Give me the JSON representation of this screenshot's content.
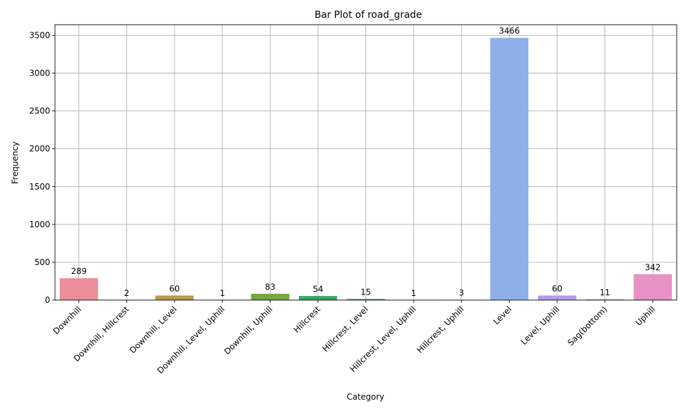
{
  "chart_data": {
    "type": "bar",
    "title": "Bar Plot of road_grade",
    "xlabel": "Category",
    "ylabel": "Frequency",
    "categories": [
      "Downhill",
      "Downhill, Hillcrest",
      "Downhill, Level",
      "Downhill, Level, Uphill",
      "Downhill, Uphill",
      "Hillcrest",
      "Hillcrest, Level",
      "Hillcrest, Level, Uphill",
      "Hillcrest, Uphill",
      "Level",
      "Level, Uphill",
      "Sag(bottom)",
      "Uphill"
    ],
    "values": [
      289,
      2,
      60,
      1,
      83,
      54,
      15,
      1,
      3,
      3466,
      60,
      11,
      342
    ],
    "data_labels": [
      "289",
      "2",
      "60",
      "1",
      "83",
      "54",
      "15",
      "1",
      "3",
      "3466",
      "60",
      "11",
      "342"
    ],
    "colors": [
      "#eb8e9b",
      "#d7a27b",
      "#b9994a",
      "#9ba33f",
      "#75a544",
      "#3ea26b",
      "#3da38d",
      "#3fa3a4",
      "#4aa1c0",
      "#8eb0e8",
      "#b59be8",
      "#d58be0",
      "#e791c5"
    ],
    "ylim": [
      0,
      3640
    ],
    "yticks": [
      0,
      500,
      1000,
      1500,
      2000,
      2500,
      3000,
      3500
    ],
    "ytick_labels": [
      "0",
      "500",
      "1000",
      "1500",
      "2000",
      "2500",
      "3000",
      "3500"
    ],
    "grid": true,
    "legend": "none"
  }
}
